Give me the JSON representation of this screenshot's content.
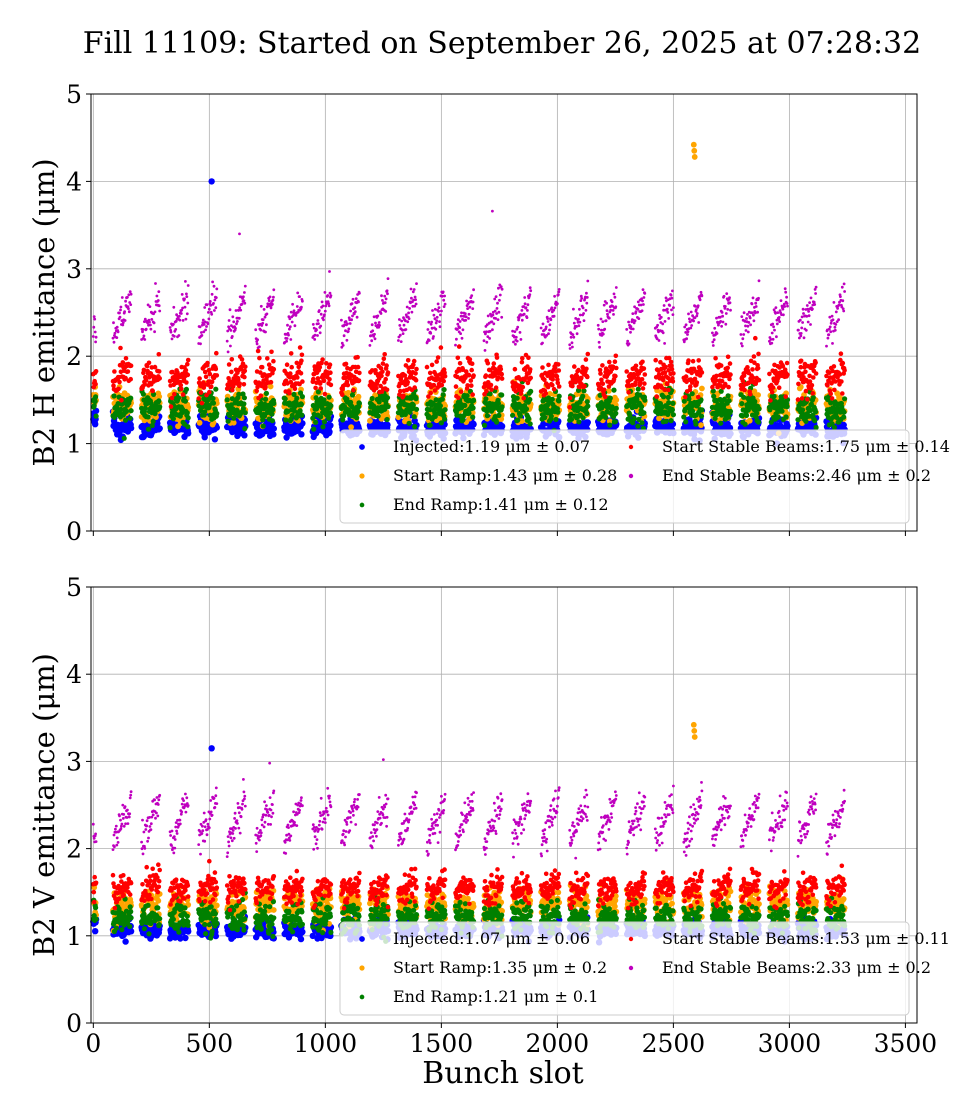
{
  "title": "Fill 11109: Started on September 26, 2025 at 07:28:32",
  "xlabel": "Bunch slot",
  "colors": {
    "Injected": "#0000ff",
    "Start Ramp": "#ffa500",
    "End Ramp": "#008000",
    "Start Stable Beams": "#ff0000",
    "End Stable Beams": "#bf00bf"
  },
  "chart_data": [
    {
      "type": "scatter",
      "ylabel": "B2 H emittance (μm)",
      "xlim": [
        -10,
        3550
      ],
      "ylim": [
        0,
        5
      ],
      "xticks": [
        0,
        500,
        1000,
        1500,
        2000,
        2500,
        3000,
        3500
      ],
      "yticks": [
        0,
        1,
        2,
        3,
        4,
        5
      ],
      "grid": true,
      "legend_position": "lower right",
      "series": [
        {
          "name": "Injected",
          "label": "Injected:1.19 μm ± 0.07",
          "mean": 1.19,
          "std": 0.07
        },
        {
          "name": "Start Ramp",
          "label": "Start Ramp:1.43 μm ± 0.28",
          "mean": 1.43,
          "std": 0.28
        },
        {
          "name": "End Ramp",
          "label": "End Ramp:1.41 μm ± 0.12",
          "mean": 1.41,
          "std": 0.12
        },
        {
          "name": "Start Stable Beams",
          "label": "Start Stable Beams:1.75 μm ± 0.14",
          "mean": 1.75,
          "std": 0.14
        },
        {
          "name": "End Stable Beams",
          "label": "End Stable Beams:2.46 μm ± 0.2",
          "mean": 2.46,
          "std": 0.2
        }
      ],
      "outliers": [
        {
          "series": "Injected",
          "x": 510,
          "y": 4.0
        },
        {
          "series": "Start Ramp",
          "x": 2588,
          "y": 4.42
        },
        {
          "series": "Start Ramp",
          "x": 2590,
          "y": 4.35
        },
        {
          "series": "Start Ramp",
          "x": 2592,
          "y": 4.28
        },
        {
          "series": "End Stable Beams",
          "x": 1720,
          "y": 3.66
        },
        {
          "series": "End Stable Beams",
          "x": 630,
          "y": 3.4
        }
      ]
    },
    {
      "type": "scatter",
      "ylabel": "B2 V emittance (μm)",
      "xlim": [
        -10,
        3550
      ],
      "ylim": [
        0,
        5
      ],
      "xticks": [
        0,
        500,
        1000,
        1500,
        2000,
        2500,
        3000,
        3500
      ],
      "yticks": [
        0,
        1,
        2,
        3,
        4,
        5
      ],
      "grid": true,
      "legend_position": "lower right",
      "series": [
        {
          "name": "Injected",
          "label": "Injected:1.07 μm ± 0.06",
          "mean": 1.07,
          "std": 0.06
        },
        {
          "name": "Start Ramp",
          "label": "Start Ramp:1.35 μm ± 0.2",
          "mean": 1.35,
          "std": 0.2
        },
        {
          "name": "End Ramp",
          "label": "End Ramp:1.21 μm ± 0.1",
          "mean": 1.21,
          "std": 0.1
        },
        {
          "name": "Start Stable Beams",
          "label": "Start Stable Beams:1.53 μm ± 0.11",
          "mean": 1.53,
          "std": 0.11
        },
        {
          "name": "End Stable Beams",
          "label": "End Stable Beams:2.33 μm ± 0.2",
          "mean": 2.33,
          "std": 0.2
        }
      ],
      "outliers": [
        {
          "series": "Injected",
          "x": 510,
          "y": 3.15
        },
        {
          "series": "Start Ramp",
          "x": 2588,
          "y": 3.42
        },
        {
          "series": "Start Ramp",
          "x": 2590,
          "y": 3.35
        },
        {
          "series": "Start Ramp",
          "x": 2592,
          "y": 3.28
        },
        {
          "series": "End Stable Beams",
          "x": 1250,
          "y": 3.02
        },
        {
          "series": "End Stable Beams",
          "x": 760,
          "y": 2.98
        }
      ]
    }
  ]
}
